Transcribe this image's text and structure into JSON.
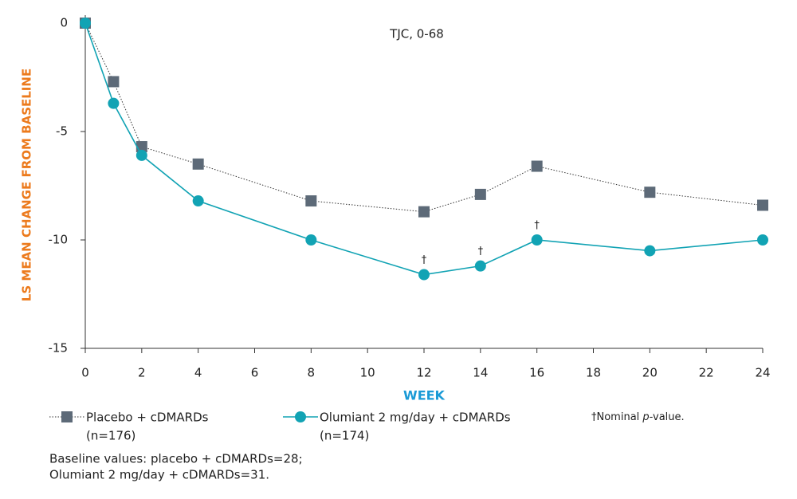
{
  "chart_data": {
    "type": "line",
    "title": "TJC, 0-68",
    "x_label": "WEEK",
    "y_label": "LS MEAN CHANGE FROM BASELINE",
    "x": [
      0,
      1,
      2,
      4,
      8,
      12,
      14,
      16,
      20,
      24
    ],
    "series": [
      {
        "name": "Placebo + cDMARDs",
        "n_label": "(n=176)",
        "color": "#5d6a78",
        "marker": "square",
        "line": "dotted",
        "values": [
          0,
          -2.7,
          -5.7,
          -6.5,
          -8.2,
          -8.7,
          -7.9,
          -6.6,
          -7.8,
          -8.4
        ]
      },
      {
        "name": "Olumiant 2 mg/day + cDMARDs",
        "n_label": "(n=174)",
        "color": "#12a3b4",
        "marker": "circle",
        "line": "solid",
        "values": [
          0,
          -3.7,
          -6.1,
          -8.2,
          -10.0,
          -11.6,
          -11.2,
          -10.0,
          -10.5,
          -10.0
        ]
      }
    ],
    "annotations": [
      {
        "x": 12,
        "label": "†"
      },
      {
        "x": 14,
        "label": "†"
      },
      {
        "x": 16,
        "label": "†"
      }
    ],
    "xlim": [
      0,
      24
    ],
    "xticks": [
      0,
      2,
      4,
      6,
      8,
      10,
      12,
      14,
      16,
      18,
      20,
      22,
      24
    ],
    "ylim": [
      -15,
      0
    ],
    "yticks": [
      0,
      -5,
      -10,
      -15
    ],
    "footnote_parts": [
      "†Nominal ",
      "p",
      "-value."
    ],
    "notes": [
      "Baseline values: placebo + cDMARDs=28;",
      "Olumiant 2 mg/day + cDMARDs=31."
    ]
  }
}
